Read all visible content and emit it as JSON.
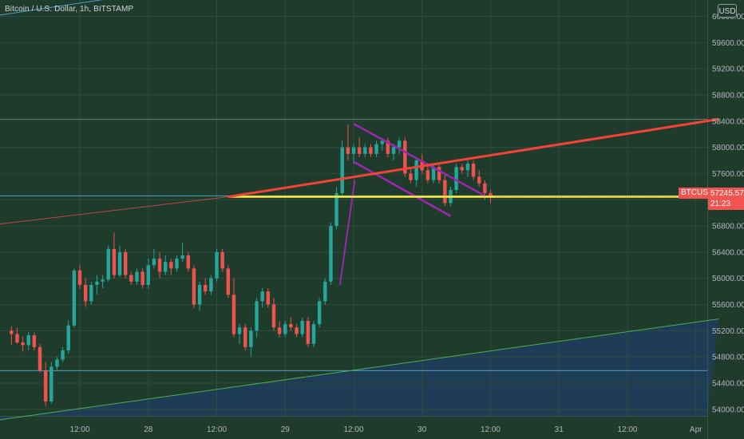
{
  "header": {
    "title": "Bitcoin / U.S. Dollar, 1h, BITSTAMP",
    "currency_button": "USD"
  },
  "price_label": {
    "symbol": "BTCUSD",
    "value": "57245.57",
    "countdown": "21:23"
  },
  "colors": {
    "background": "#1f3b2b",
    "up": "#26a69a",
    "down": "#ef5350",
    "trendline": "#f44336",
    "horizontal": "#ffeb3b",
    "flag": "#9c27b0",
    "channel_lower": "#4caf50",
    "zone_fill": "#1e3d5a",
    "axis_text": "#b2b5be"
  },
  "chart_data": {
    "type": "candlestick",
    "title": "Bitcoin / U.S. Dollar, 1h, BITSTAMP",
    "y_ticks": [
      "54000.00",
      "54400.00",
      "54800.00",
      "55200.00",
      "55600.00",
      "56000.00",
      "56400.00",
      "56800.00",
      "57200.00",
      "57600.00",
      "58000.00",
      "58400.00",
      "58800.00",
      "59200.00",
      "59600.00",
      "60000.00"
    ],
    "x_ticks": [
      {
        "label": "12:00",
        "hour": 12
      },
      {
        "label": "28",
        "hour": 24
      },
      {
        "label": "12:00",
        "hour": 36
      },
      {
        "label": "29",
        "hour": 48
      },
      {
        "label": "12:00",
        "hour": 60
      },
      {
        "label": "30",
        "hour": 72
      },
      {
        "label": "12:00",
        "hour": 84
      },
      {
        "label": "31",
        "hour": 96
      },
      {
        "label": "12:00",
        "hour": 108
      },
      {
        "label": "Apr",
        "hour": 120
      }
    ],
    "ylim": [
      53900,
      60250
    ],
    "last_price": 57245.57,
    "candles": [
      [
        55200,
        55270,
        54980,
        55150
      ],
      [
        55150,
        55250,
        55000,
        55020
      ],
      [
        55020,
        55110,
        54880,
        54980
      ],
      [
        54980,
        55180,
        54900,
        55130
      ],
      [
        55130,
        55170,
        54900,
        54950
      ],
      [
        54950,
        55000,
        54560,
        54590
      ],
      [
        54590,
        54720,
        54050,
        54120
      ],
      [
        54120,
        54720,
        54090,
        54650
      ],
      [
        54650,
        54800,
        54600,
        54760
      ],
      [
        54760,
        54950,
        54720,
        54900
      ],
      [
        54900,
        55360,
        54850,
        55280
      ],
      [
        55280,
        56150,
        55250,
        56120
      ],
      [
        56120,
        56200,
        55840,
        55900
      ],
      [
        55900,
        56000,
        55560,
        55650
      ],
      [
        55650,
        55950,
        55600,
        55900
      ],
      [
        55900,
        56050,
        55750,
        55950
      ],
      [
        55950,
        56050,
        55850,
        55980
      ],
      [
        55980,
        56500,
        55950,
        56450
      ],
      [
        56450,
        56700,
        56000,
        56050
      ],
      [
        56050,
        56500,
        56020,
        56400
      ],
      [
        56400,
        56450,
        56000,
        56050
      ],
      [
        56050,
        56100,
        55900,
        55950
      ],
      [
        55950,
        56150,
        55900,
        56100
      ],
      [
        56100,
        56150,
        55850,
        55900
      ],
      [
        55900,
        56300,
        55850,
        56200
      ],
      [
        56200,
        56450,
        56150,
        56300
      ],
      [
        56300,
        56400,
        56000,
        56100
      ],
      [
        56100,
        56350,
        56050,
        56250
      ],
      [
        56250,
        56300,
        56050,
        56150
      ],
      [
        56150,
        56350,
        56100,
        56300
      ],
      [
        56300,
        56550,
        56250,
        56350
      ],
      [
        56350,
        56400,
        56100,
        56150
      ],
      [
        56150,
        56200,
        55550,
        55600
      ],
      [
        55600,
        55950,
        55500,
        55900
      ],
      [
        55900,
        56000,
        55750,
        55800
      ],
      [
        55800,
        56050,
        55750,
        56000
      ],
      [
        56000,
        56450,
        55950,
        56400
      ],
      [
        56400,
        56450,
        56100,
        56150
      ],
      [
        56150,
        56200,
        55700,
        55750
      ],
      [
        55750,
        56000,
        55100,
        55150
      ],
      [
        55150,
        55300,
        55000,
        55250
      ],
      [
        55250,
        55300,
        54900,
        54950
      ],
      [
        54950,
        55250,
        54800,
        55200
      ],
      [
        55200,
        55700,
        55100,
        55650
      ],
      [
        55650,
        55850,
        55550,
        55800
      ],
      [
        55800,
        55850,
        55550,
        55600
      ],
      [
        55600,
        55700,
        55200,
        55250
      ],
      [
        55250,
        55350,
        55100,
        55150
      ],
      [
        55150,
        55350,
        55100,
        55300
      ],
      [
        55300,
        55400,
        55200,
        55250
      ],
      [
        55250,
        55300,
        55100,
        55150
      ],
      [
        55150,
        55400,
        55100,
        55350
      ],
      [
        55350,
        55400,
        54950,
        55000
      ],
      [
        55000,
        55350,
        54950,
        55300
      ],
      [
        55300,
        55700,
        55250,
        55650
      ],
      [
        55650,
        56000,
        55600,
        55950
      ],
      [
        55950,
        56850,
        55900,
        56800
      ],
      [
        56800,
        57400,
        56750,
        57300
      ],
      [
        57300,
        58100,
        57250,
        58000
      ],
      [
        58000,
        58350,
        57800,
        57900
      ],
      [
        57900,
        58050,
        57750,
        58000
      ],
      [
        58000,
        58150,
        57850,
        57900
      ],
      [
        57900,
        58050,
        57850,
        58000
      ],
      [
        58000,
        58050,
        57850,
        57900
      ],
      [
        57900,
        58100,
        57850,
        58050
      ],
      [
        58050,
        58150,
        57950,
        58100
      ],
      [
        58100,
        58150,
        57850,
        57900
      ],
      [
        57900,
        58050,
        57800,
        58000
      ],
      [
        58000,
        58150,
        57900,
        58100
      ],
      [
        58100,
        58150,
        57550,
        57600
      ],
      [
        57600,
        57700,
        57450,
        57500
      ],
      [
        57500,
        57850,
        57400,
        57800
      ],
      [
        57800,
        57900,
        57600,
        57650
      ],
      [
        57650,
        57750,
        57450,
        57500
      ],
      [
        57500,
        57750,
        57450,
        57700
      ],
      [
        57700,
        57750,
        57450,
        57500
      ],
      [
        57500,
        57600,
        57100,
        57150
      ],
      [
        57150,
        57400,
        57100,
        57350
      ],
      [
        57350,
        57750,
        57300,
        57700
      ],
      [
        57700,
        57750,
        57600,
        57650
      ],
      [
        57650,
        57800,
        57550,
        57750
      ],
      [
        57750,
        57800,
        57500,
        57550
      ],
      [
        57550,
        57650,
        57400,
        57450
      ],
      [
        57450,
        57500,
        57200,
        57300
      ],
      [
        57300,
        57350,
        57150,
        57245.57
      ]
    ],
    "first_candle_hour": 0,
    "x_range_hours": [
      -2,
      122
    ],
    "drawings": {
      "horizontal_level": 57245.57,
      "horizontal_start_hour": 38,
      "red_trendline": [
        [
          38,
          57245
        ],
        [
          124,
          58430
        ]
      ],
      "red_thin_line": [
        [
          -2,
          56830
        ],
        [
          38,
          57245
        ]
      ],
      "flag_upper": [
        [
          60,
          58360
        ],
        [
          83,
          57260
        ]
      ],
      "flag_lower": [
        [
          60,
          57780
        ],
        [
          77,
          56950
        ]
      ],
      "flag_pole": [
        [
          57.6,
          55900
        ],
        [
          60.2,
          57500
        ]
      ],
      "blue_ray": [
        [
          -2,
          60020
        ],
        [
          24,
          60360
        ]
      ],
      "blue_horizontal_1": 57260,
      "blue_horizontal_2": 54590,
      "gray_level": 58430,
      "green_channel": [
        [
          -2,
          53840
        ],
        [
          124,
          55380
        ]
      ]
    }
  }
}
